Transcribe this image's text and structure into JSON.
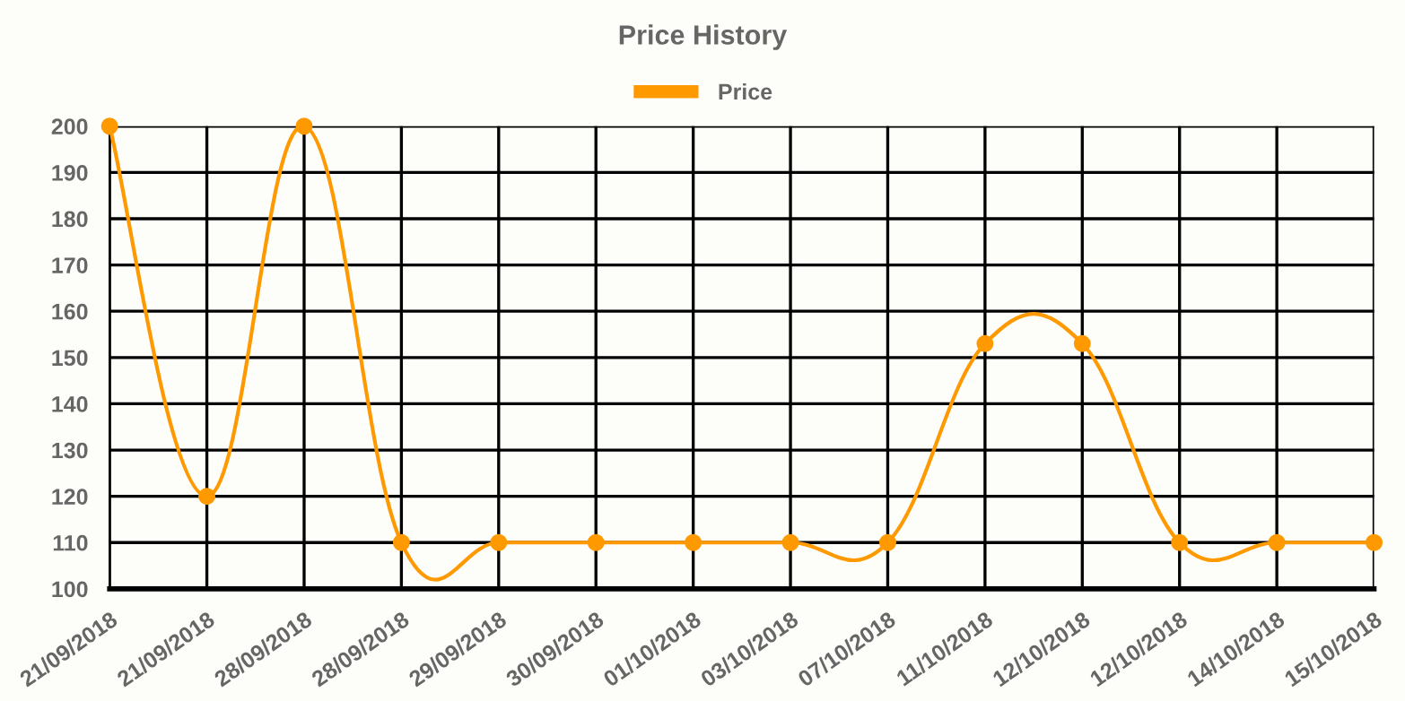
{
  "chart_data": {
    "type": "line",
    "title": "Price History",
    "categories": [
      "21/09/2018",
      "21/09/2018",
      "28/09/2018",
      "28/09/2018",
      "29/09/2018",
      "30/09/2018",
      "01/10/2018",
      "03/10/2018",
      "07/10/2018",
      "11/10/2018",
      "12/10/2018",
      "12/10/2018",
      "14/10/2018",
      "15/10/2018"
    ],
    "series": [
      {
        "name": "Price",
        "color": "#ff9900",
        "values": [
          200,
          120,
          200,
          110,
          110,
          110,
          110,
          110,
          110,
          153,
          153,
          110,
          110,
          110
        ]
      }
    ],
    "ylim": [
      100,
      200
    ],
    "yticks": [
      100,
      110,
      120,
      130,
      140,
      150,
      160,
      170,
      180,
      190,
      200
    ],
    "grid": true,
    "legend": "top",
    "marker": "circle",
    "line_style": "solid"
  }
}
